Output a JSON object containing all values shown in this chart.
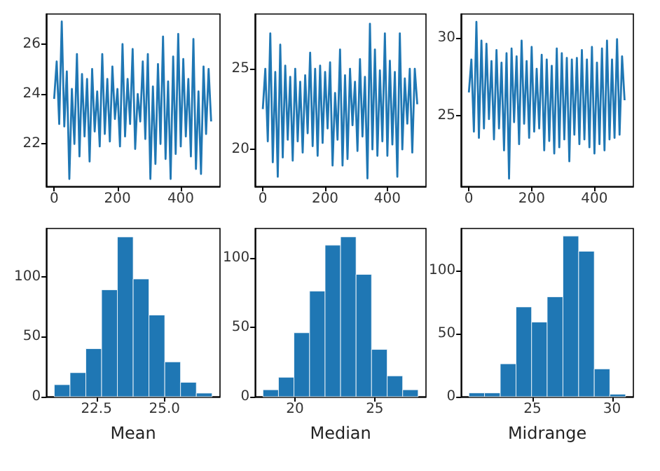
{
  "chart_data": [
    {
      "type": "line",
      "x": [
        0,
        8,
        16,
        24,
        32,
        40,
        48,
        56,
        64,
        72,
        80,
        88,
        96,
        104,
        112,
        120,
        128,
        136,
        144,
        152,
        160,
        168,
        176,
        184,
        192,
        200,
        208,
        216,
        224,
        232,
        240,
        248,
        256,
        264,
        272,
        280,
        288,
        296,
        304,
        312,
        320,
        328,
        336,
        344,
        352,
        360,
        368,
        376,
        384,
        392,
        400,
        408,
        416,
        424,
        432,
        440,
        448,
        456,
        464,
        472,
        480,
        488,
        496
      ],
      "series": [
        {
          "color": "#1f77b4",
          "values": [
            23.8,
            25.3,
            22.8,
            26.9,
            22.7,
            24.9,
            20.6,
            24.2,
            22.0,
            25.6,
            21.5,
            24.8,
            22.3,
            24.6,
            21.3,
            25.0,
            22.5,
            24.1,
            21.9,
            25.6,
            22.4,
            24.6,
            22.1,
            25.1,
            23.0,
            24.2,
            21.9,
            26.0,
            22.3,
            24.6,
            22.8,
            25.8,
            21.8,
            24.0,
            22.9,
            25.3,
            22.2,
            25.6,
            20.6,
            24.3,
            21.2,
            25.2,
            22.0,
            26.3,
            21.4,
            24.5,
            20.6,
            25.5,
            21.6,
            26.4,
            21.9,
            25.4,
            22.3,
            24.6,
            21.5,
            26.2,
            21.0,
            24.1,
            20.8,
            25.1,
            22.4,
            25.0,
            22.9
          ]
        }
      ],
      "xlim": [
        -25,
        524
      ],
      "xticks": [
        0,
        200,
        400
      ],
      "ylim": [
        20.3,
        27.2
      ],
      "yticks": [
        22,
        24,
        26
      ],
      "grid": false
    },
    {
      "type": "line",
      "x": [
        0,
        8,
        16,
        24,
        32,
        40,
        48,
        56,
        64,
        72,
        80,
        88,
        96,
        104,
        112,
        120,
        128,
        136,
        144,
        152,
        160,
        168,
        176,
        184,
        192,
        200,
        208,
        216,
        224,
        232,
        240,
        248,
        256,
        264,
        272,
        280,
        288,
        296,
        304,
        312,
        320,
        328,
        336,
        344,
        352,
        360,
        368,
        376,
        384,
        392,
        400,
        408,
        416,
        424,
        432,
        440,
        448,
        456,
        464,
        472,
        480,
        488,
        496
      ],
      "series": [
        {
          "color": "#1f77b4",
          "values": [
            22.5,
            25.0,
            20.5,
            27.2,
            19.2,
            24.8,
            18.3,
            26.5,
            19.5,
            25.2,
            20.6,
            24.5,
            19.3,
            25.0,
            20.5,
            24.2,
            19.8,
            24.6,
            21.0,
            26.0,
            20.2,
            25.0,
            19.6,
            25.2,
            20.4,
            24.8,
            21.3,
            25.4,
            19.0,
            23.5,
            20.6,
            26.2,
            19.0,
            24.6,
            19.4,
            25.0,
            21.5,
            24.2,
            19.9,
            25.6,
            20.8,
            24.5,
            18.2,
            27.8,
            20.0,
            26.2,
            19.6,
            24.9,
            20.5,
            27.2,
            19.6,
            25.5,
            20.3,
            24.8,
            18.3,
            27.2,
            20.0,
            24.4,
            21.6,
            25.0,
            19.8,
            25.0,
            22.8
          ]
        }
      ],
      "xlim": [
        -25,
        524
      ],
      "xticks": [
        0,
        200,
        400
      ],
      "ylim": [
        17.7,
        28.4
      ],
      "yticks": [
        20,
        25
      ],
      "grid": false
    },
    {
      "type": "line",
      "x": [
        0,
        8,
        16,
        24,
        32,
        40,
        48,
        56,
        64,
        72,
        80,
        88,
        96,
        104,
        112,
        120,
        128,
        136,
        144,
        152,
        160,
        168,
        176,
        184,
        192,
        200,
        208,
        216,
        224,
        232,
        240,
        248,
        256,
        264,
        272,
        280,
        288,
        296,
        304,
        312,
        320,
        328,
        336,
        344,
        352,
        360,
        368,
        376,
        384,
        392,
        400,
        408,
        416,
        424,
        432,
        440,
        448,
        456,
        464,
        472,
        480,
        488,
        496
      ],
      "series": [
        {
          "color": "#1f77b4",
          "values": [
            26.5,
            28.6,
            24.0,
            31.0,
            23.6,
            29.8,
            24.2,
            29.6,
            24.8,
            28.5,
            23.5,
            29.2,
            24.2,
            28.4,
            22.8,
            29.0,
            21.0,
            29.3,
            24.6,
            28.8,
            23.2,
            29.8,
            24.5,
            28.5,
            23.6,
            29.4,
            24.0,
            28.0,
            24.2,
            28.9,
            22.8,
            28.6,
            23.4,
            28.2,
            22.6,
            29.3,
            23.0,
            29.0,
            23.5,
            28.7,
            22.1,
            28.6,
            23.8,
            28.7,
            23.2,
            29.2,
            23.5,
            28.6,
            23.0,
            29.4,
            22.6,
            28.4,
            23.2,
            29.3,
            22.8,
            29.8,
            23.5,
            28.6,
            23.6,
            29.9,
            23.8,
            28.8,
            26.0
          ]
        }
      ],
      "xlim": [
        -25,
        524
      ],
      "xticks": [
        0,
        200,
        400
      ],
      "ylim": [
        20.5,
        31.5
      ],
      "yticks": [
        25,
        30
      ],
      "grid": false
    },
    {
      "type": "histogram",
      "xlabel": "Mean",
      "bins": [
        20.95,
        21.53,
        22.11,
        22.69,
        23.27,
        23.85,
        24.43,
        25.01,
        25.59,
        26.17,
        26.75
      ],
      "values": [
        10,
        20,
        40,
        89,
        133,
        98,
        68,
        29,
        12,
        3
      ],
      "color": "#1f77b4",
      "xlim": [
        20.66,
        27.04
      ],
      "xticks": [
        {
          "value": 22.5,
          "label": "22.5"
        },
        {
          "value": 25,
          "label": "25.0"
        }
      ],
      "ylim": [
        0,
        140
      ],
      "yticks": [
        0,
        50,
        100
      ],
      "grid": false
    },
    {
      "type": "histogram",
      "xlabel": "Median",
      "bins": [
        18.0,
        18.97,
        19.94,
        20.92,
        21.89,
        22.86,
        23.83,
        24.8,
        25.78,
        26.75,
        27.72
      ],
      "values": [
        5,
        14,
        46,
        76,
        109,
        115,
        88,
        34,
        15,
        5
      ],
      "color": "#1f77b4",
      "xlim": [
        17.51,
        28.21
      ],
      "xticks": [
        20,
        25
      ],
      "ylim": [
        0,
        121
      ],
      "yticks": [
        0,
        50,
        100
      ],
      "grid": false
    },
    {
      "type": "histogram",
      "xlabel": "Midrange",
      "bins": [
        21.0,
        21.98,
        22.97,
        23.96,
        24.94,
        25.92,
        26.91,
        27.9,
        28.88,
        29.86,
        30.85
      ],
      "values": [
        3,
        3,
        26,
        71,
        59,
        79,
        127,
        115,
        22,
        2
      ],
      "color": "#1f77b4",
      "xlim": [
        20.51,
        31.34
      ],
      "xticks": [
        25,
        30
      ],
      "ylim": [
        0,
        133
      ],
      "yticks": [
        0,
        50,
        100
      ],
      "grid": false
    }
  ]
}
